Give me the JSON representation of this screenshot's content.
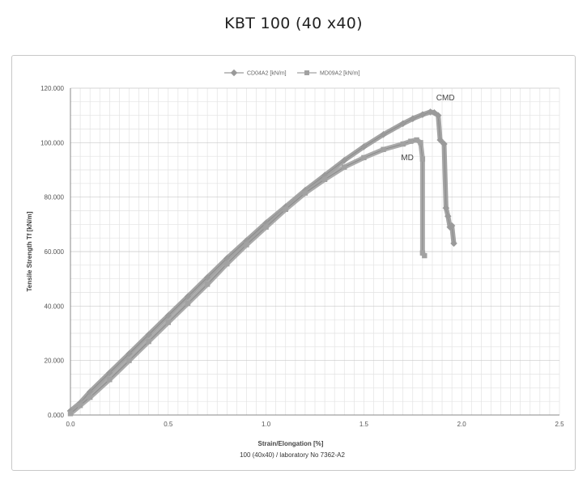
{
  "page_title": "KBT 100 (40 x40)",
  "chart_data": {
    "type": "line",
    "title": "KBT 100 (40 x40)",
    "xlabel": "Strain/Elongation [%]",
    "ylabel": "Tensile Strength Tf [kN/m]",
    "xlim": [
      0,
      2.5
    ],
    "ylim": [
      0,
      120
    ],
    "x_ticks": [
      "0.0",
      "0.5",
      "1.0",
      "1.5",
      "2.0",
      "2.5"
    ],
    "y_ticks": [
      "0.000",
      "20.000",
      "40.000",
      "60.000",
      "80.000",
      "100.000",
      "120.000"
    ],
    "grid": true,
    "legend_position": "top",
    "legend": [
      "CD04A2 [kN/m]",
      "MD09A2 [kN/m]"
    ],
    "footer_text": "100 (40x40)     /     laboratory No  7362-A2",
    "series": [
      {
        "name": "CD04A2 [kN/m]",
        "color": "#9a9a9a",
        "marker": "diamond",
        "x": [
          0.0,
          0.05,
          0.1,
          0.2,
          0.3,
          0.4,
          0.5,
          0.6,
          0.7,
          0.8,
          0.9,
          1.0,
          1.1,
          1.2,
          1.3,
          1.4,
          1.5,
          1.6,
          1.7,
          1.75,
          1.8,
          1.84,
          1.86,
          1.88,
          1.89,
          1.91,
          1.92,
          1.93,
          1.94,
          1.95,
          1.96
        ],
        "y": [
          1.5,
          4.5,
          8.5,
          15.5,
          22.5,
          29.5,
          36.5,
          43.5,
          50.5,
          57.5,
          64.0,
          70.5,
          76.5,
          82.5,
          88.0,
          93.5,
          98.5,
          103.0,
          107.0,
          108.8,
          110.3,
          111.3,
          111.0,
          110.0,
          101.0,
          99.5,
          76.0,
          73.0,
          69.0,
          69.5,
          63.0
        ]
      },
      {
        "name": "MD09A2 [kN/m]",
        "color": "#a2a2a2",
        "marker": "square",
        "x": [
          0.0,
          0.05,
          0.1,
          0.2,
          0.3,
          0.4,
          0.5,
          0.6,
          0.7,
          0.8,
          0.9,
          1.0,
          1.1,
          1.2,
          1.3,
          1.4,
          1.5,
          1.6,
          1.7,
          1.74,
          1.77,
          1.79,
          1.8,
          1.8,
          1.81
        ],
        "y": [
          0.5,
          3.5,
          6.5,
          13.0,
          20.0,
          27.0,
          34.0,
          41.0,
          48.0,
          55.5,
          62.5,
          69.0,
          75.5,
          81.5,
          86.5,
          91.0,
          94.5,
          97.5,
          99.5,
          100.5,
          101.0,
          100.0,
          94.0,
          59.5,
          58.5
        ]
      }
    ],
    "annotations": [
      {
        "text": "CMD",
        "x": 1.87,
        "y": 115.5
      },
      {
        "text": "MD",
        "x": 1.69,
        "y": 93.5
      }
    ]
  }
}
